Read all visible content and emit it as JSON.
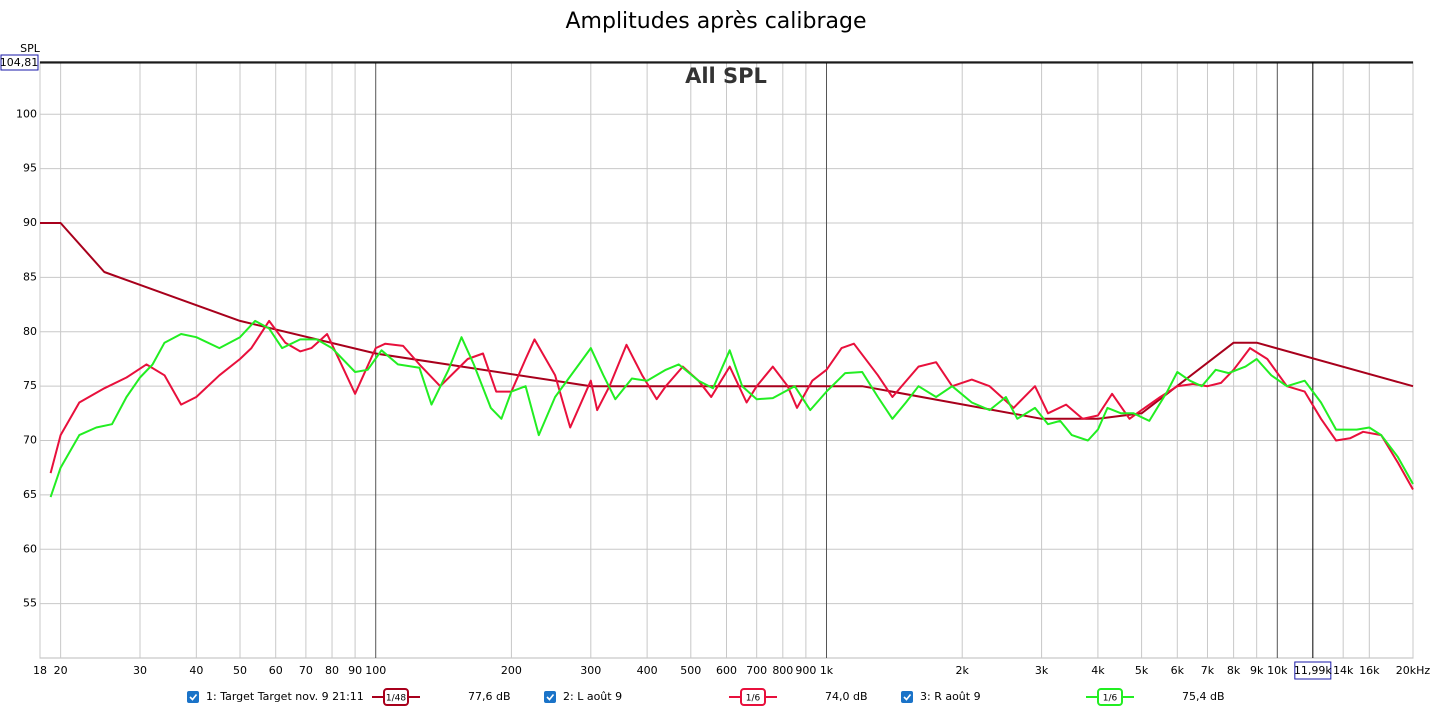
{
  "chart_data": {
    "type": "line",
    "title": "Amplitudes après calibrage",
    "annotation": "All SPL",
    "y_label": "SPL",
    "xscale": "log",
    "grid": true,
    "xlim": [
      18,
      20000
    ],
    "ylim": [
      50,
      104.81
    ],
    "yticks": [
      55,
      60,
      65,
      70,
      75,
      80,
      85,
      90,
      95,
      100
    ],
    "xticks": [
      18,
      20,
      30,
      40,
      50,
      60,
      70,
      80,
      90,
      100,
      200,
      300,
      400,
      500,
      600,
      700,
      800,
      900,
      {
        "value": 1000,
        "label": "1k"
      },
      {
        "value": 2000,
        "label": "2k"
      },
      {
        "value": 3000,
        "label": "3k"
      },
      {
        "value": 4000,
        "label": "4k"
      },
      {
        "value": 5000,
        "label": "5k"
      },
      {
        "value": 6000,
        "label": "6k"
      },
      {
        "value": 7000,
        "label": "7k"
      },
      {
        "value": 8000,
        "label": "8k"
      },
      {
        "value": 9000,
        "label": "9k"
      },
      {
        "value": 10000,
        "label": "10k"
      },
      {
        "value": 14000,
        "label": "14k"
      },
      {
        "value": 16000,
        "label": "16k"
      },
      {
        "value": 20000,
        "label": "20kHz"
      }
    ],
    "y_cursor": {
      "value": 104.81,
      "label": "104,81"
    },
    "x_cursor": {
      "value": 11990,
      "label": "11,99k"
    },
    "series": [
      {
        "name": "1: Target Target nov. 9 21:11",
        "color": "#a8001c",
        "smoothing": "1/48",
        "level": {
          "value": 77.6,
          "label": "77,6 dB"
        },
        "x": [
          18,
          20,
          25,
          50,
          100,
          300,
          1200,
          3000,
          4000,
          5000,
          8000,
          9000,
          20000
        ],
        "values": [
          90,
          90,
          85.5,
          81,
          78,
          75,
          75,
          72,
          72,
          72.5,
          79,
          79,
          75
        ]
      },
      {
        "name": "2: L août 9",
        "color": "#e8103c",
        "smoothing": "1/6",
        "level": {
          "value": 74.0,
          "label": "74,0 dB"
        },
        "x": [
          19,
          20,
          22,
          25,
          28,
          31,
          34,
          37,
          40,
          45,
          50,
          53,
          58,
          63,
          68,
          72,
          78,
          85,
          90,
          100,
          105,
          115,
          125,
          139,
          160,
          173,
          185,
          200,
          215,
          225,
          250,
          270,
          300,
          310,
          330,
          360,
          390,
          420,
          440,
          480,
          520,
          555,
          610,
          665,
          700,
          760,
          820,
          860,
          930,
          1000,
          1080,
          1150,
          1300,
          1400,
          1600,
          1750,
          1900,
          2100,
          2300,
          2600,
          2900,
          3100,
          3400,
          3700,
          4000,
          4300,
          4700,
          5000,
          5500,
          6000,
          6500,
          7000,
          7500,
          8000,
          8700,
          9500,
          10500,
          11500,
          12500,
          13500,
          14500,
          15500,
          17000,
          18500,
          20000
        ],
        "values": [
          67,
          70.5,
          73.5,
          74.8,
          75.8,
          77,
          76,
          73.3,
          74,
          76,
          77.5,
          78.5,
          81,
          79,
          78.2,
          78.5,
          79.8,
          76.5,
          74.3,
          78.5,
          78.9,
          78.7,
          77,
          75,
          77.5,
          78,
          74.5,
          74.5,
          77.5,
          79.3,
          76,
          71.2,
          75.5,
          72.8,
          75,
          78.8,
          76,
          73.8,
          75,
          76.8,
          75.5,
          74,
          76.8,
          73.5,
          75,
          76.8,
          75,
          73,
          75.5,
          76.5,
          78.5,
          78.9,
          76,
          74,
          76.8,
          77.2,
          75,
          75.6,
          75,
          73,
          75,
          72.5,
          73.3,
          72,
          72.3,
          74.3,
          72,
          72.8,
          74,
          75,
          75.2,
          75,
          75.3,
          76.5,
          78.5,
          77.5,
          75,
          74.5,
          72,
          70,
          70.2,
          70.8,
          70.5,
          68,
          65.5
        ]
      },
      {
        "name": "3: R août 9",
        "color": "#22ee22",
        "smoothing": "1/6",
        "level": {
          "value": 75.4,
          "label": "75,4 dB"
        },
        "x": [
          19,
          20,
          22,
          24,
          26,
          28,
          30,
          32,
          34,
          37,
          40,
          45,
          50,
          54,
          58,
          62,
          68,
          74,
          80,
          90,
          96,
          103,
          112,
          125,
          133,
          145,
          155,
          165,
          180,
          190,
          200,
          215,
          230,
          250,
          280,
          300,
          320,
          340,
          370,
          400,
          440,
          470,
          520,
          560,
          610,
          650,
          700,
          760,
          850,
          920,
          1000,
          1100,
          1200,
          1300,
          1400,
          1500,
          1600,
          1750,
          1900,
          2100,
          2300,
          2500,
          2650,
          2900,
          3100,
          3300,
          3500,
          3800,
          4000,
          4200,
          4500,
          4800,
          5200,
          5700,
          6000,
          6400,
          6800,
          7300,
          7800,
          8500,
          9000,
          9700,
          10500,
          11500,
          12500,
          13500,
          15000,
          16000,
          17000,
          18500,
          20000
        ],
        "values": [
          64.8,
          67.5,
          70.5,
          71.2,
          71.5,
          74,
          75.8,
          77,
          79,
          79.8,
          79.5,
          78.5,
          79.5,
          81,
          80.3,
          78.5,
          79.3,
          79.3,
          78.5,
          76.3,
          76.5,
          78.3,
          77,
          76.7,
          73.3,
          76.5,
          79.5,
          77,
          73,
          72,
          74.5,
          75,
          70.5,
          74,
          76.8,
          78.5,
          76,
          73.8,
          75.7,
          75.5,
          76.5,
          77,
          75.5,
          74.8,
          78.3,
          75,
          73.8,
          73.9,
          75,
          72.8,
          74.5,
          76.2,
          76.3,
          74,
          72,
          73.5,
          75,
          74,
          75,
          73.5,
          72.8,
          74,
          72,
          73,
          71.5,
          71.8,
          70.5,
          70,
          71,
          73,
          72.5,
          72.5,
          71.8,
          74.5,
          76.3,
          75.5,
          75,
          76.5,
          76.2,
          76.8,
          77.5,
          76,
          75,
          75.5,
          73.5,
          71,
          71,
          71.2,
          70.5,
          68.5,
          66
        ]
      }
    ]
  }
}
